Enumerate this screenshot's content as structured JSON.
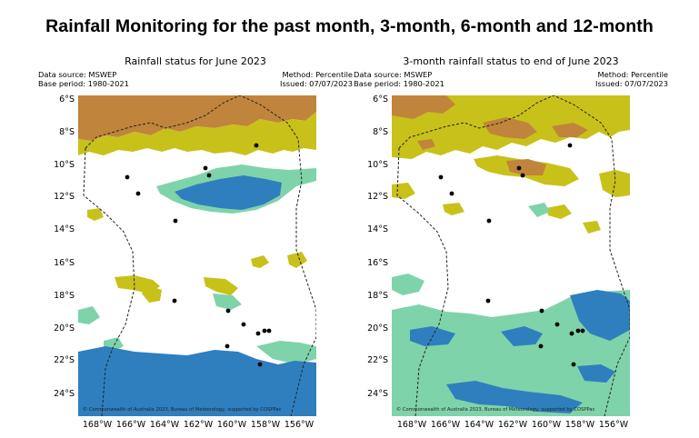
{
  "title": "Rainfall Monitoring for the past month, 3-month, 6-month and 12-month",
  "colors": {
    "very_much_above": "#c0843c",
    "above": "#c8c11a",
    "below": "#7fd3aa",
    "very_much_below": "#2f7fbe",
    "boundary": "#222222",
    "station": "#000000"
  },
  "panels": [
    {
      "title": "Rainfall status for June 2023",
      "data_source": "Data source: MSWEP",
      "base_period": "Base period: 1980-2021",
      "method": "Method: Percentile",
      "issued": "Issued: 07/07/2023",
      "copyright": "© Commonwealth of Australia 2023, Bureau of Meteorology, supported by COSPPac"
    },
    {
      "title": "3-month rainfall status to end of June 2023",
      "data_source": "Data source: MSWEP",
      "base_period": "Base period: 1980-2021",
      "method": "Method: Percentile",
      "issued": "Issued: 07/07/2023",
      "copyright": "© Commonwealth of Australia 2023, Bureau of Meteorology, supported by COSPPac"
    }
  ],
  "axes": {
    "lat_labels": [
      "6°S",
      "8°S",
      "10°S",
      "12°S",
      "14°S",
      "16°S",
      "18°S",
      "20°S",
      "22°S",
      "24°S"
    ],
    "lon_labels": [
      "168°W",
      "166°W",
      "164°W",
      "162°W",
      "160°W",
      "158°W",
      "156°W"
    ]
  }
}
